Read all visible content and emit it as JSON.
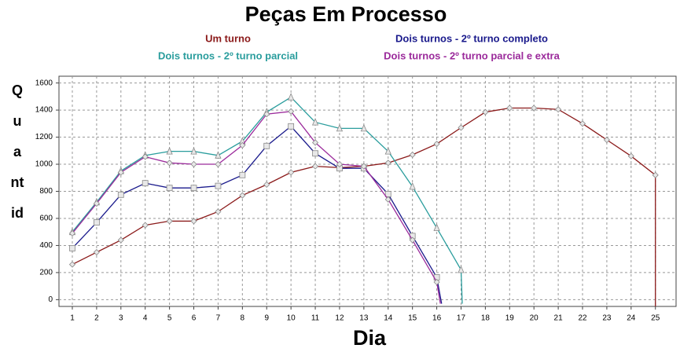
{
  "chart_data": {
    "type": "line",
    "title": "Peças Em Processo",
    "x_label": "Dia",
    "y_label": "Quantid",
    "series": [
      {
        "name": "Um turno",
        "color": "#8b1a1a",
        "marker": "diamond",
        "x": [
          1,
          2,
          3,
          4,
          5,
          6,
          7,
          8,
          9,
          10,
          11,
          12,
          13,
          14,
          15,
          16,
          17,
          18,
          19,
          20,
          21,
          22,
          23,
          24,
          25,
          25
        ],
        "values": [
          260,
          350,
          440,
          550,
          580,
          580,
          650,
          770,
          850,
          940,
          985,
          975,
          985,
          1010,
          1070,
          1150,
          1270,
          1385,
          1415,
          1415,
          1405,
          1300,
          1180,
          1060,
          920,
          -50
        ]
      },
      {
        "name": "Dois turnos - 2º turno completo",
        "color": "#1a1a8c",
        "marker": "square",
        "x": [
          1,
          2,
          3,
          4,
          5,
          6,
          7,
          8,
          9,
          10,
          11,
          12,
          13,
          14,
          15,
          16,
          16.2
        ],
        "values": [
          380,
          570,
          775,
          860,
          825,
          825,
          840,
          920,
          1135,
          1280,
          1080,
          970,
          970,
          780,
          470,
          165,
          -30
        ]
      },
      {
        "name": "Dois turnos - 2º turno parcial",
        "color": "#2a9d9d",
        "marker": "triangle",
        "x": [
          1,
          2,
          3,
          4,
          5,
          6,
          7,
          8,
          9,
          10,
          11,
          12,
          13,
          14,
          15,
          16,
          17,
          17.05
        ],
        "values": [
          500,
          720,
          950,
          1065,
          1095,
          1095,
          1065,
          1170,
          1385,
          1495,
          1310,
          1265,
          1265,
          1095,
          835,
          530,
          220,
          -30
        ]
      },
      {
        "name": "Dois turnos - 2º turno parcial e extra",
        "color": "#9b2a9b",
        "marker": "diamond",
        "x": [
          1,
          2,
          3,
          4,
          5,
          6,
          7,
          8,
          9,
          10,
          11,
          12,
          13,
          14,
          15,
          16,
          16.15
        ],
        "values": [
          490,
          710,
          940,
          1055,
          1010,
          1000,
          1000,
          1140,
          1370,
          1390,
          1160,
          1000,
          985,
          740,
          440,
          130,
          -30
        ]
      }
    ],
    "xlim": [
      0.45,
      25.85
    ],
    "xticks": [
      1,
      2,
      3,
      4,
      5,
      6,
      7,
      8,
      9,
      10,
      11,
      12,
      13,
      14,
      15,
      16,
      17,
      18,
      19,
      20,
      21,
      22,
      23,
      24,
      25
    ],
    "ylim": [
      -50,
      1650
    ],
    "yticks": [
      0,
      200,
      400,
      600,
      800,
      1000,
      1200,
      1400,
      1600
    ],
    "grid": true
  }
}
